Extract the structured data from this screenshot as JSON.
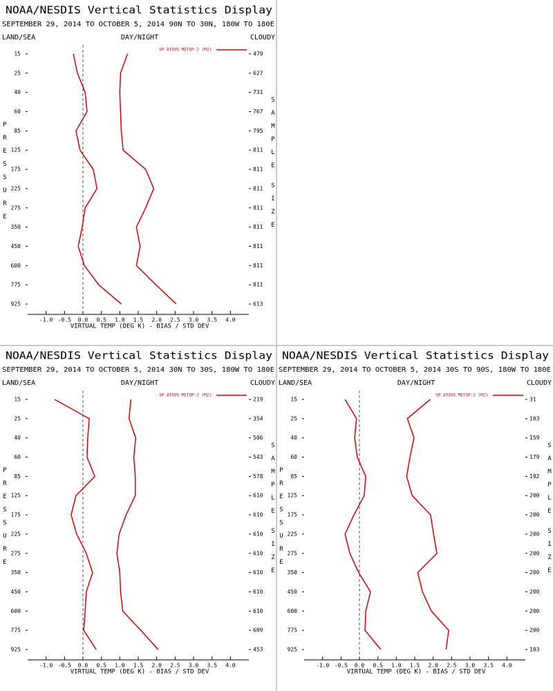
{
  "chart_data": [
    {
      "type": "line",
      "title": "NOAA/NESDIS Vertical Statistics Display",
      "subtitle": "SEPTEMBER 29, 2014 TO OCTOBER 5, 2014 90N TO 30N, 180W TO 180E",
      "left_header": "LAND/SEA",
      "center_header": "DAY/NIGHT",
      "right_header": "CLOUDY",
      "ylabel": "PRESSURE",
      "y2label": [
        "SAMPLE",
        "SIZE"
      ],
      "xlabel": "VIRTUAL TEMP (DEG K) - BIAS / STD DEV",
      "categories": [
        15,
        25,
        40,
        60,
        85,
        125,
        175,
        225,
        275,
        350,
        450,
        600,
        775,
        925
      ],
      "sample_sizes": [
        479,
        627,
        731,
        767,
        795,
        811,
        811,
        811,
        811,
        811,
        811,
        811,
        811,
        613
      ],
      "series": [
        {
          "name": "SP ATOVS METOP-2 (M2)",
          "color": "#dd0000",
          "bias": [
            -0.26,
            -0.15,
            0.06,
            0.11,
            -0.19,
            -0.08,
            0.28,
            0.38,
            0.06,
            -0.02,
            -0.13,
            0.04,
            0.43,
            1.04
          ],
          "std_dev": [
            1.21,
            1.02,
            1.0,
            1.02,
            1.04,
            1.09,
            1.7,
            1.92,
            1.7,
            1.45,
            1.55,
            1.45,
            1.98,
            2.53
          ]
        }
      ],
      "xlim": [
        -1.5,
        4.5
      ],
      "xticks": [
        {
          "value": -1,
          "label": "-1.0"
        },
        -0.5,
        {
          "value": 0,
          "label": "0.0"
        },
        0.5,
        {
          "value": 1,
          "label": "1.0"
        },
        1.5,
        {
          "value": 2,
          "label": "2.0"
        },
        2.5,
        {
          "value": 3,
          "label": "3.0"
        },
        3.5,
        {
          "value": 4,
          "label": "4.0"
        }
      ],
      "legend": "upper right"
    },
    {
      "type": "line",
      "title": "NOAA/NESDIS Vertical Statistics Display",
      "subtitle": "SEPTEMBER 29, 2014 TO OCTOBER 5, 2014 30N TO 30S, 180W TO 180E",
      "left_header": "LAND/SEA",
      "center_header": "DAY/NIGHT",
      "right_header": "CLOUDY",
      "ylabel": "PRESSURE",
      "y2label": [
        "SAMPLE",
        "SIZE"
      ],
      "xlabel": "VIRTUAL TEMP (DEG K) - BIAS / STD DEV",
      "categories": [
        15,
        25,
        40,
        60,
        85,
        125,
        175,
        225,
        275,
        350,
        450,
        600,
        775,
        925
      ],
      "sample_sizes": [
        219,
        354,
        506,
        543,
        578,
        610,
        610,
        610,
        610,
        610,
        610,
        610,
        609,
        453
      ],
      "series": [
        {
          "name": "SP ATOVS METOP-2 (M2)",
          "color": "#dd0000",
          "bias": [
            -0.77,
            0.17,
            0.13,
            0.11,
            0.32,
            -0.19,
            -0.32,
            -0.17,
            0.09,
            0.26,
            0.09,
            0.06,
            0.02,
            0.36
          ],
          "std_dev": [
            1.3,
            1.25,
            1.43,
            1.38,
            1.42,
            1.42,
            1.17,
            0.98,
            0.92,
            1.0,
            1.02,
            1.08,
            1.57,
            2.04
          ]
        }
      ],
      "xlim": [
        -1.5,
        4.5
      ],
      "xticks": [
        {
          "value": -1,
          "label": "-1.0"
        },
        -0.5,
        {
          "value": 0,
          "label": "0.0"
        },
        0.5,
        {
          "value": 1,
          "label": "1.0"
        },
        1.5,
        {
          "value": 2,
          "label": "2.0"
        },
        2.5,
        {
          "value": 3,
          "label": "3.0"
        },
        3.5,
        {
          "value": 4,
          "label": "4.0"
        }
      ],
      "legend": "upper right"
    },
    {
      "type": "line",
      "title": "NOAA/NESDIS Vertical Statistics Display",
      "subtitle": "SEPTEMBER 29, 2014 TO OCTOBER 5, 2014 30S TO 90S, 180W TO 180E",
      "left_header": "LAND/SEA",
      "center_header": "DAY/NIGHT",
      "right_header": "CLOUDY",
      "ylabel": "PRESSURE",
      "y2label": [
        "SAMPLE",
        "SIZE"
      ],
      "xlabel": "VIRTUAL TEMP (DEG K) - BIAS / STD DEV",
      "categories": [
        15,
        25,
        40,
        60,
        85,
        125,
        175,
        225,
        275,
        350,
        450,
        600,
        775,
        925
      ],
      "sample_sizes": [
        31,
        103,
        159,
        179,
        192,
        200,
        200,
        200,
        200,
        200,
        200,
        200,
        200,
        103
      ],
      "series": [
        {
          "name": "SP ATOVS METOP-2 (M2)",
          "color": "#dd0000",
          "bias": [
            -0.39,
            -0.08,
            -0.13,
            -0.06,
            0.17,
            0.13,
            -0.15,
            -0.39,
            -0.26,
            -0.02,
            0.3,
            0.17,
            0.15,
            0.58
          ],
          "std_dev": [
            1.92,
            1.3,
            1.48,
            1.37,
            1.28,
            1.43,
            1.93,
            2.01,
            2.1,
            1.58,
            1.71,
            1.95,
            2.42,
            2.35
          ]
        }
      ],
      "xlim": [
        -1.5,
        4.5
      ],
      "xticks": [
        {
          "value": -1,
          "label": "-1.0"
        },
        -0.5,
        {
          "value": 0,
          "label": "0.0"
        },
        0.5,
        {
          "value": 1,
          "label": "1.0"
        },
        1.5,
        {
          "value": 2,
          "label": "2.0"
        },
        2.5,
        {
          "value": 3,
          "label": "3.0"
        },
        3.5,
        {
          "value": 4,
          "label": "4.0"
        }
      ],
      "legend": "upper right"
    }
  ]
}
